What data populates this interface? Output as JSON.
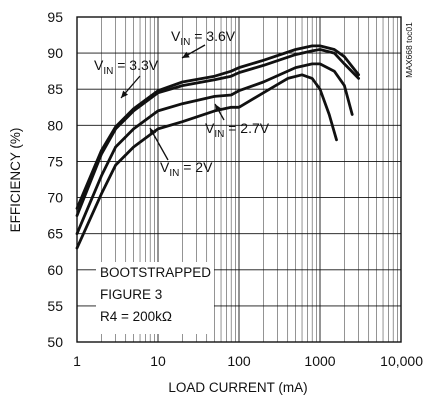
{
  "chart_data": {
    "type": "line",
    "title": "",
    "xlabel": "LOAD CURRENT (mA)",
    "ylabel": "EFFICIENCY (%)",
    "xscale": "log",
    "xlim": [
      1,
      10000
    ],
    "ylim": [
      50,
      95
    ],
    "x_ticks": [
      1,
      10,
      100,
      1000,
      10000
    ],
    "x_tick_labels": [
      "1",
      "10",
      "100",
      "1000",
      "10,000"
    ],
    "y_ticks": [
      50,
      55,
      60,
      65,
      70,
      75,
      80,
      85,
      90,
      95
    ],
    "y_tick_labels": [
      "50",
      "55",
      "60",
      "65",
      "70",
      "75",
      "80",
      "85",
      "90",
      "95"
    ],
    "grid": true,
    "side_label": "MAX668 toc01",
    "annotation": [
      "BOOTSTRAPPED",
      "FIGURE 3",
      "R4 = 200kΩ"
    ],
    "series": [
      {
        "name": "VIN = 3.6V",
        "label_main": "V",
        "label_sub": "IN",
        "label_rest": " = 3.6V",
        "x": [
          1,
          2,
          3,
          5,
          10,
          20,
          50,
          80,
          100,
          200,
          500,
          800,
          1000,
          1500,
          2000,
          3000
        ],
        "y": [
          68.5,
          76.5,
          79.8,
          82.3,
          84.8,
          86.0,
          86.8,
          87.5,
          88.0,
          89.0,
          90.5,
          91.0,
          91.0,
          90.5,
          89.5,
          87.0
        ]
      },
      {
        "name": "VIN = 3.3V",
        "label_main": "V",
        "label_sub": "IN",
        "label_rest": " = 3.3V",
        "x": [
          1,
          2,
          3,
          5,
          10,
          20,
          50,
          80,
          100,
          200,
          500,
          800,
          1000,
          1500,
          2000,
          3000
        ],
        "y": [
          67.5,
          76.0,
          79.5,
          82.0,
          84.5,
          85.5,
          86.3,
          86.8,
          87.3,
          88.3,
          89.8,
          90.3,
          90.5,
          90.0,
          88.5,
          86.5
        ]
      },
      {
        "name": "VIN = 2.7V",
        "label_main": "V",
        "label_sub": "IN",
        "label_rest": " = 2.7V",
        "x": [
          1,
          2,
          3,
          5,
          10,
          20,
          50,
          80,
          100,
          200,
          500,
          800,
          1000,
          1500,
          2000,
          2500
        ],
        "y": [
          65.0,
          73.0,
          77.0,
          79.5,
          82.0,
          83.0,
          84.0,
          84.2,
          84.8,
          86.0,
          88.0,
          88.5,
          88.5,
          87.5,
          85.5,
          81.5
        ]
      },
      {
        "name": "VIN = 2V",
        "label_main": "V",
        "label_sub": "IN",
        "label_rest": " = 2V",
        "x": [
          1,
          2,
          3,
          5,
          10,
          20,
          50,
          80,
          100,
          200,
          400,
          600,
          800,
          1000,
          1300,
          1600
        ],
        "y": [
          63.0,
          70.5,
          74.5,
          77.0,
          79.5,
          80.5,
          82.0,
          82.5,
          82.5,
          84.5,
          86.5,
          87.0,
          86.5,
          85.0,
          81.5,
          78.0
        ]
      }
    ]
  }
}
